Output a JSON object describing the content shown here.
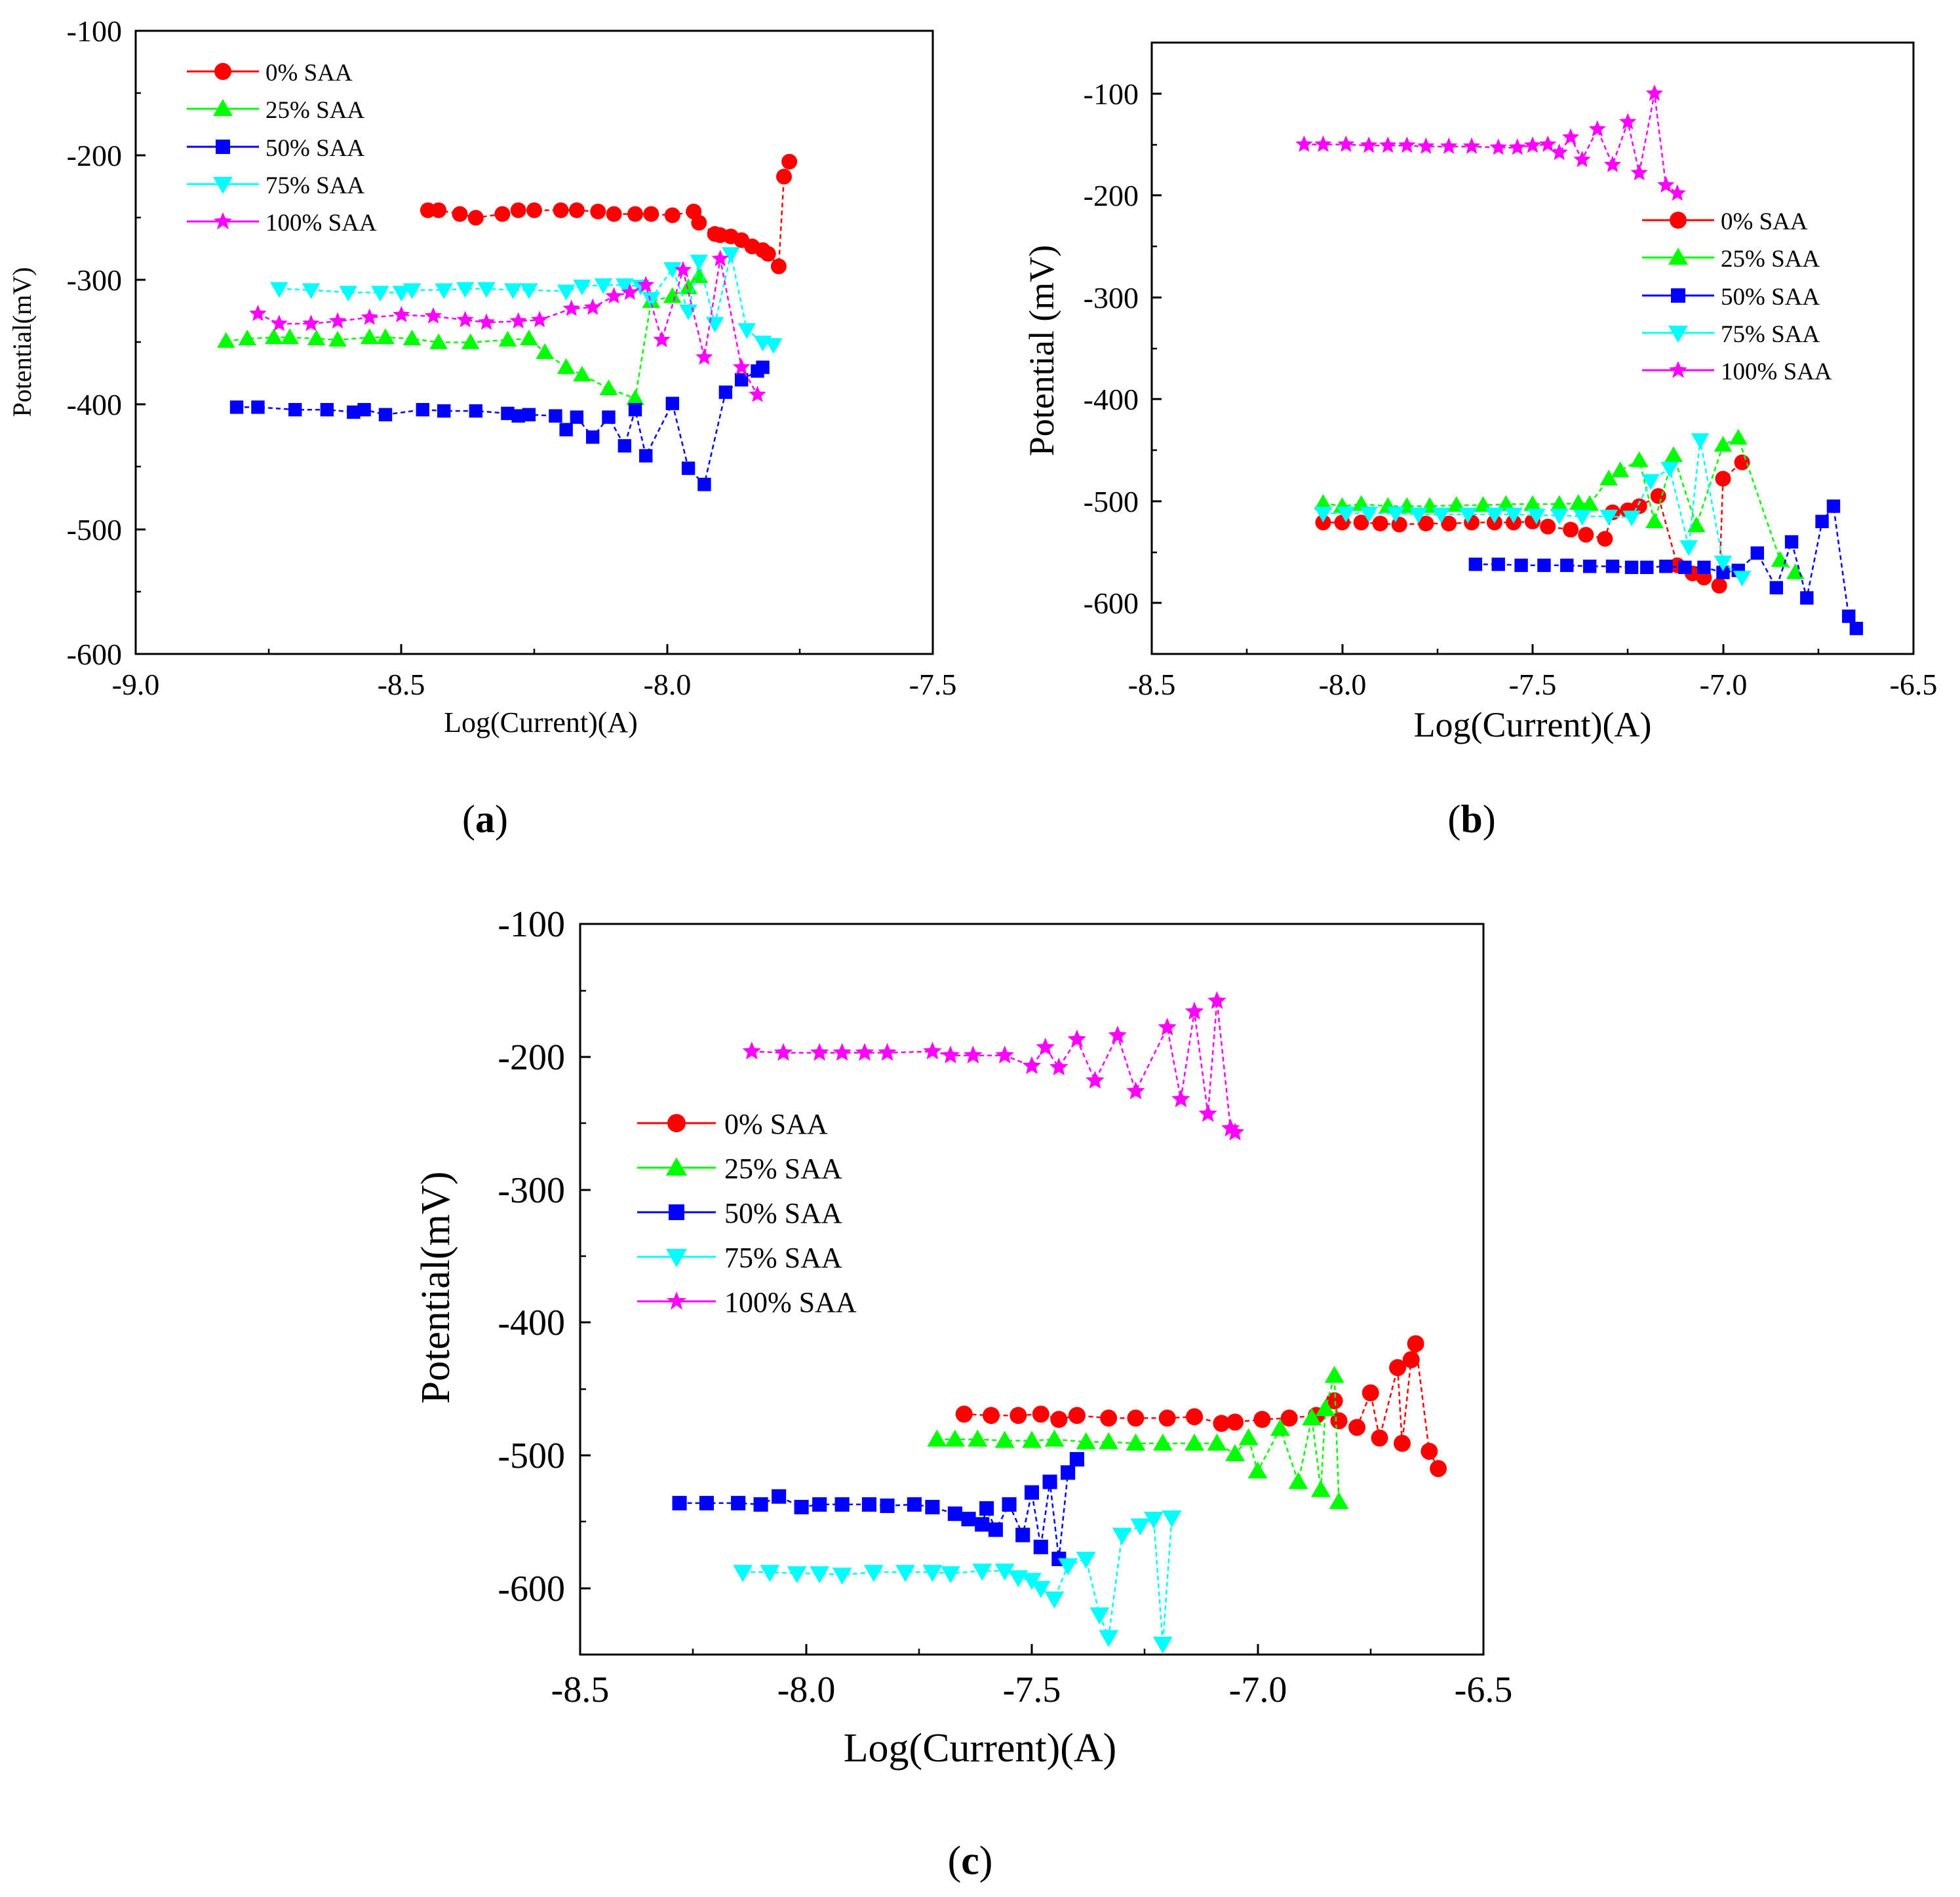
{
  "colors": {
    "0% SAA": "#ff0000",
    "25% SAA": "#00ff00",
    "50% SAA": "#0000ff",
    "75% SAA": "#00ffff",
    "100% SAA": "#ff00ff"
  },
  "markers": {
    "0% SAA": "circle",
    "25% SAA": "triangle-up",
    "50% SAA": "square",
    "75% SAA": "triangle-down",
    "100% SAA": "star"
  },
  "chart_data": [
    {
      "type": "scatter",
      "panel_label": "a",
      "title": "",
      "xlabel": "Log(Current)(A)",
      "ylabel": "Potential(mV)",
      "xlim": [
        -9.0,
        -7.5
      ],
      "ylim": [
        -600,
        -100
      ],
      "xticks": [
        -9.0,
        -8.5,
        -8.0,
        -7.5
      ],
      "xtick_labels": [
        "-9.0",
        "-8.5",
        "-8.0",
        "-7.5"
      ],
      "yticks": [
        -600,
        -500,
        -400,
        -300,
        -200,
        -100
      ],
      "ytick_labels": [
        "-600",
        "-500",
        "-400",
        "-300",
        "-200",
        "-100"
      ],
      "legend": [
        "0% SAA",
        "25% SAA",
        "50% SAA",
        "75% SAA",
        "100% SAA"
      ],
      "legend_position": "top-left",
      "series": [
        {
          "name": "0% SAA",
          "x": [
            -8.45,
            -8.43,
            -8.39,
            -8.36,
            -8.31,
            -8.28,
            -8.25,
            -8.2,
            -8.17,
            -8.13,
            -8.1,
            -8.06,
            -8.03,
            -7.99,
            -7.95,
            -7.94,
            -7.91,
            -7.9,
            -7.88,
            -7.86,
            -7.84,
            -7.82,
            -7.81,
            -7.79,
            -7.78,
            -7.77
          ],
          "y": [
            -244,
            -244,
            -247,
            -250,
            -247,
            -244,
            -244,
            -244,
            -244,
            -245,
            -247,
            -247,
            -247,
            -248,
            -245,
            -254,
            -263,
            -264,
            -265,
            -268,
            -273,
            -276,
            -279,
            -289,
            -217,
            -205
          ]
        },
        {
          "name": "25% SAA",
          "x": [
            -8.83,
            -8.79,
            -8.74,
            -8.71,
            -8.66,
            -8.62,
            -8.56,
            -8.53,
            -8.48,
            -8.43,
            -8.37,
            -8.3,
            -8.26,
            -8.23,
            -8.19,
            -8.16,
            -8.11,
            -8.06,
            -8.03,
            -7.99,
            -7.96,
            -7.94
          ],
          "y": [
            -349,
            -347,
            -346,
            -346,
            -347,
            -348,
            -346,
            -346,
            -347,
            -350,
            -350,
            -348,
            -347,
            -358,
            -370,
            -376,
            -387,
            -395,
            -317,
            -313,
            -306,
            -297
          ]
        },
        {
          "name": "50% SAA",
          "x": [
            -8.81,
            -8.77,
            -8.7,
            -8.64,
            -8.59,
            -8.57,
            -8.53,
            -8.46,
            -8.42,
            -8.36,
            -8.3,
            -8.28,
            -8.26,
            -8.21,
            -8.19,
            -8.17,
            -8.14,
            -8.11,
            -8.08,
            -8.06,
            -8.04,
            -7.99,
            -7.96,
            -7.93,
            -7.89,
            -7.86,
            -7.83,
            -7.82
          ],
          "y": [
            -402,
            -402,
            -404,
            -404,
            -406,
            -404,
            -408,
            -404,
            -405,
            -405,
            -407,
            -409,
            -408,
            -409,
            -420,
            -410,
            -426,
            -410,
            -433,
            -404,
            -441,
            -399,
            -451,
            -464,
            -390,
            -380,
            -373,
            -370
          ]
        },
        {
          "name": "75% SAA",
          "x": [
            -8.73,
            -8.67,
            -8.6,
            -8.54,
            -8.5,
            -8.48,
            -8.42,
            -8.38,
            -8.34,
            -8.29,
            -8.26,
            -8.19,
            -8.16,
            -8.12,
            -8.08,
            -8.05,
            -8.03,
            -7.99,
            -7.96,
            -7.94,
            -7.91,
            -7.88,
            -7.85,
            -7.82,
            -7.8
          ],
          "y": [
            -307,
            -308,
            -310,
            -310,
            -310,
            -308,
            -308,
            -307,
            -307,
            -308,
            -308,
            -309,
            -305,
            -304,
            -304,
            -305,
            -315,
            -291,
            -325,
            -285,
            -335,
            -279,
            -340,
            -350,
            -352
          ]
        },
        {
          "name": "100% SAA",
          "x": [
            -8.77,
            -8.73,
            -8.67,
            -8.62,
            -8.56,
            -8.5,
            -8.44,
            -8.38,
            -8.34,
            -8.28,
            -8.24,
            -8.18,
            -8.14,
            -8.1,
            -8.07,
            -8.04,
            -8.01,
            -7.97,
            -7.93,
            -7.9,
            -7.86,
            -7.83
          ],
          "y": [
            -327,
            -335,
            -335,
            -333,
            -330,
            -328,
            -329,
            -332,
            -334,
            -333,
            -332,
            -323,
            -322,
            -313,
            -310,
            -304,
            -348,
            -292,
            -362,
            -283,
            -370,
            -392
          ]
        }
      ]
    },
    {
      "type": "scatter",
      "panel_label": "b",
      "title": "",
      "xlabel": "Log(Current)(A)",
      "ylabel": "Potential (mV)",
      "xlim": [
        -8.5,
        -6.5
      ],
      "ylim": [
        -650,
        -50
      ],
      "xticks": [
        -8.5,
        -8.0,
        -7.5,
        -7.0,
        -6.5
      ],
      "xtick_labels": [
        "-8.5",
        "-8.0",
        "-7.5",
        "-7.0",
        "-6.5"
      ],
      "yticks": [
        -600,
        -500,
        -400,
        -300,
        -200,
        -100
      ],
      "ytick_labels": [
        "-600",
        "-500",
        "-400",
        "-300",
        "-200",
        "-100"
      ],
      "legend": [
        "0% SAA",
        "25% SAA",
        "50% SAA",
        "75% SAA",
        "100% SAA"
      ],
      "legend_position": "center-right",
      "series": [
        {
          "name": "0% SAA",
          "x": [
            -8.05,
            -8.0,
            -7.95,
            -7.9,
            -7.85,
            -7.78,
            -7.72,
            -7.66,
            -7.6,
            -7.55,
            -7.5,
            -7.46,
            -7.4,
            -7.36,
            -7.31,
            -7.29,
            -7.25,
            -7.22,
            -7.17,
            -7.12,
            -7.08,
            -7.05,
            -7.01,
            -7.0,
            -6.95
          ],
          "y": [
            -521,
            -521,
            -521,
            -522,
            -523,
            -522,
            -522,
            -521,
            -521,
            -521,
            -520,
            -525,
            -528,
            -533,
            -537,
            -511,
            -509,
            -505,
            -495,
            -563,
            -571,
            -575,
            -583,
            -478,
            -462
          ]
        },
        {
          "name": "25% SAA",
          "x": [
            -8.05,
            -8.0,
            -7.95,
            -7.88,
            -7.83,
            -7.77,
            -7.7,
            -7.63,
            -7.57,
            -7.5,
            -7.43,
            -7.38,
            -7.35,
            -7.3,
            -7.27,
            -7.22,
            -7.18,
            -7.13,
            -7.07,
            -7.0,
            -6.96,
            -6.85,
            -6.81
          ],
          "y": [
            -502,
            -505,
            -503,
            -505,
            -505,
            -505,
            -504,
            -504,
            -503,
            -503,
            -503,
            -502,
            -503,
            -478,
            -470,
            -460,
            -520,
            -455,
            -524,
            -445,
            -438,
            -558,
            -570
          ]
        },
        {
          "name": "50% SAA",
          "x": [
            -7.65,
            -7.59,
            -7.53,
            -7.47,
            -7.41,
            -7.35,
            -7.29,
            -7.24,
            -7.2,
            -7.15,
            -7.1,
            -7.05,
            -7.0,
            -6.96,
            -6.91,
            -6.86,
            -6.82,
            -6.78,
            -6.74,
            -6.71,
            -6.67,
            -6.65
          ],
          "y": [
            -562,
            -562,
            -563,
            -563,
            -563,
            -564,
            -564,
            -565,
            -565,
            -564,
            -565,
            -565,
            -570,
            -568,
            -551,
            -585,
            -540,
            -595,
            -520,
            -505,
            -613,
            -625
          ]
        },
        {
          "name": "75% SAA",
          "x": [
            -8.05,
            -7.99,
            -7.93,
            -7.86,
            -7.8,
            -7.74,
            -7.67,
            -7.6,
            -7.55,
            -7.49,
            -7.43,
            -7.37,
            -7.3,
            -7.24,
            -7.19,
            -7.14,
            -7.09,
            -7.06,
            -7.0,
            -6.95
          ],
          "y": [
            -512,
            -512,
            -512,
            -512,
            -513,
            -513,
            -513,
            -513,
            -513,
            -514,
            -514,
            -515,
            -515,
            -516,
            -480,
            -468,
            -545,
            -440,
            -560,
            -575
          ]
        },
        {
          "name": "100% SAA",
          "x": [
            -8.1,
            -8.05,
            -7.99,
            -7.93,
            -7.88,
            -7.83,
            -7.78,
            -7.72,
            -7.66,
            -7.59,
            -7.54,
            -7.5,
            -7.46,
            -7.43,
            -7.4,
            -7.37,
            -7.33,
            -7.29,
            -7.25,
            -7.22,
            -7.18,
            -7.15,
            -7.12
          ],
          "y": [
            -150,
            -150,
            -150,
            -151,
            -151,
            -151,
            -152,
            -152,
            -152,
            -153,
            -153,
            -151,
            -150,
            -158,
            -143,
            -165,
            -135,
            -170,
            -128,
            -178,
            -100,
            -190,
            -198
          ]
        }
      ]
    },
    {
      "type": "scatter",
      "panel_label": "c",
      "title": "",
      "xlabel": "Log(Current)(A)",
      "ylabel": "Potential(mV)",
      "xlim": [
        -8.5,
        -6.5
      ],
      "ylim": [
        -650,
        -100
      ],
      "xticks": [
        -8.5,
        -8.0,
        -7.5,
        -7.0,
        -6.5
      ],
      "xtick_labels": [
        "-8.5",
        "-8.0",
        "-7.5",
        "-7.0",
        "-6.5"
      ],
      "yticks": [
        -600,
        -500,
        -400,
        -300,
        -200,
        -100
      ],
      "ytick_labels": [
        "-600",
        "-500",
        "-400",
        "-300",
        "-200",
        "-100"
      ],
      "legend": [
        "0% SAA",
        "25% SAA",
        "50% SAA",
        "75% SAA",
        "100% SAA"
      ],
      "legend_position": "center-left",
      "series": [
        {
          "name": "0% SAA",
          "x": [
            -7.65,
            -7.59,
            -7.53,
            -7.48,
            -7.44,
            -7.4,
            -7.33,
            -7.27,
            -7.2,
            -7.14,
            -7.08,
            -7.05,
            -6.99,
            -6.93,
            -6.87,
            -6.83,
            -6.82,
            -6.78,
            -6.75,
            -6.73,
            -6.69,
            -6.68,
            -6.66,
            -6.65,
            -6.62,
            -6.6
          ],
          "y": [
            -469,
            -470,
            -470,
            -469,
            -473,
            -470,
            -472,
            -472,
            -472,
            -471,
            -476,
            -475,
            -473,
            -472,
            -470,
            -459,
            -474,
            -479,
            -453,
            -487,
            -434,
            -491,
            -428,
            -416,
            -497,
            -510
          ]
        },
        {
          "name": "25% SAA",
          "x": [
            -7.71,
            -7.67,
            -7.62,
            -7.56,
            -7.5,
            -7.45,
            -7.38,
            -7.33,
            -7.27,
            -7.21,
            -7.14,
            -7.09,
            -7.05,
            -7.02,
            -7.0,
            -6.95,
            -6.91,
            -6.88,
            -6.86,
            -6.85,
            -6.83,
            -6.82
          ],
          "y": [
            -488,
            -488,
            -488,
            -489,
            -489,
            -488,
            -490,
            -490,
            -491,
            -491,
            -491,
            -491,
            -499,
            -487,
            -512,
            -480,
            -520,
            -472,
            -526,
            -465,
            -440,
            -535
          ]
        },
        {
          "name": "50% SAA",
          "x": [
            -8.28,
            -8.22,
            -8.15,
            -8.1,
            -8.06,
            -8.01,
            -7.97,
            -7.92,
            -7.86,
            -7.82,
            -7.76,
            -7.72,
            -7.67,
            -7.64,
            -7.61,
            -7.6,
            -7.58,
            -7.55,
            -7.52,
            -7.5,
            -7.48,
            -7.46,
            -7.44,
            -7.42,
            -7.4
          ],
          "y": [
            -536,
            -536,
            -536,
            -537,
            -531,
            -539,
            -537,
            -537,
            -537,
            -538,
            -537,
            -539,
            -544,
            -548,
            -552,
            -540,
            -556,
            -537,
            -560,
            -528,
            -569,
            -520,
            -578,
            -513,
            -503
          ]
        },
        {
          "name": "75% SAA",
          "x": [
            -8.14,
            -8.08,
            -8.02,
            -7.97,
            -7.92,
            -7.85,
            -7.78,
            -7.72,
            -7.68,
            -7.61,
            -7.56,
            -7.53,
            -7.5,
            -7.48,
            -7.45,
            -7.42,
            -7.38,
            -7.35,
            -7.33,
            -7.3,
            -7.26,
            -7.23,
            -7.21,
            -7.19
          ],
          "y": [
            -588,
            -588,
            -589,
            -589,
            -590,
            -588,
            -588,
            -588,
            -589,
            -587,
            -587,
            -592,
            -594,
            -600,
            -608,
            -583,
            -578,
            -620,
            -637,
            -560,
            -553,
            -548,
            -642,
            -547
          ]
        },
        {
          "name": "100% SAA",
          "x": [
            -8.12,
            -8.05,
            -7.97,
            -7.92,
            -7.87,
            -7.82,
            -7.72,
            -7.68,
            -7.63,
            -7.56,
            -7.5,
            -7.47,
            -7.44,
            -7.4,
            -7.36,
            -7.31,
            -7.27,
            -7.2,
            -7.17,
            -7.14,
            -7.11,
            -7.09,
            -7.06,
            -7.05
          ],
          "y": [
            -196,
            -197,
            -197,
            -197,
            -197,
            -197,
            -196,
            -199,
            -199,
            -199,
            -207,
            -193,
            -208,
            -187,
            -218,
            -184,
            -226,
            -178,
            -232,
            -166,
            -243,
            -158,
            -254,
            -257
          ]
        }
      ]
    }
  ]
}
